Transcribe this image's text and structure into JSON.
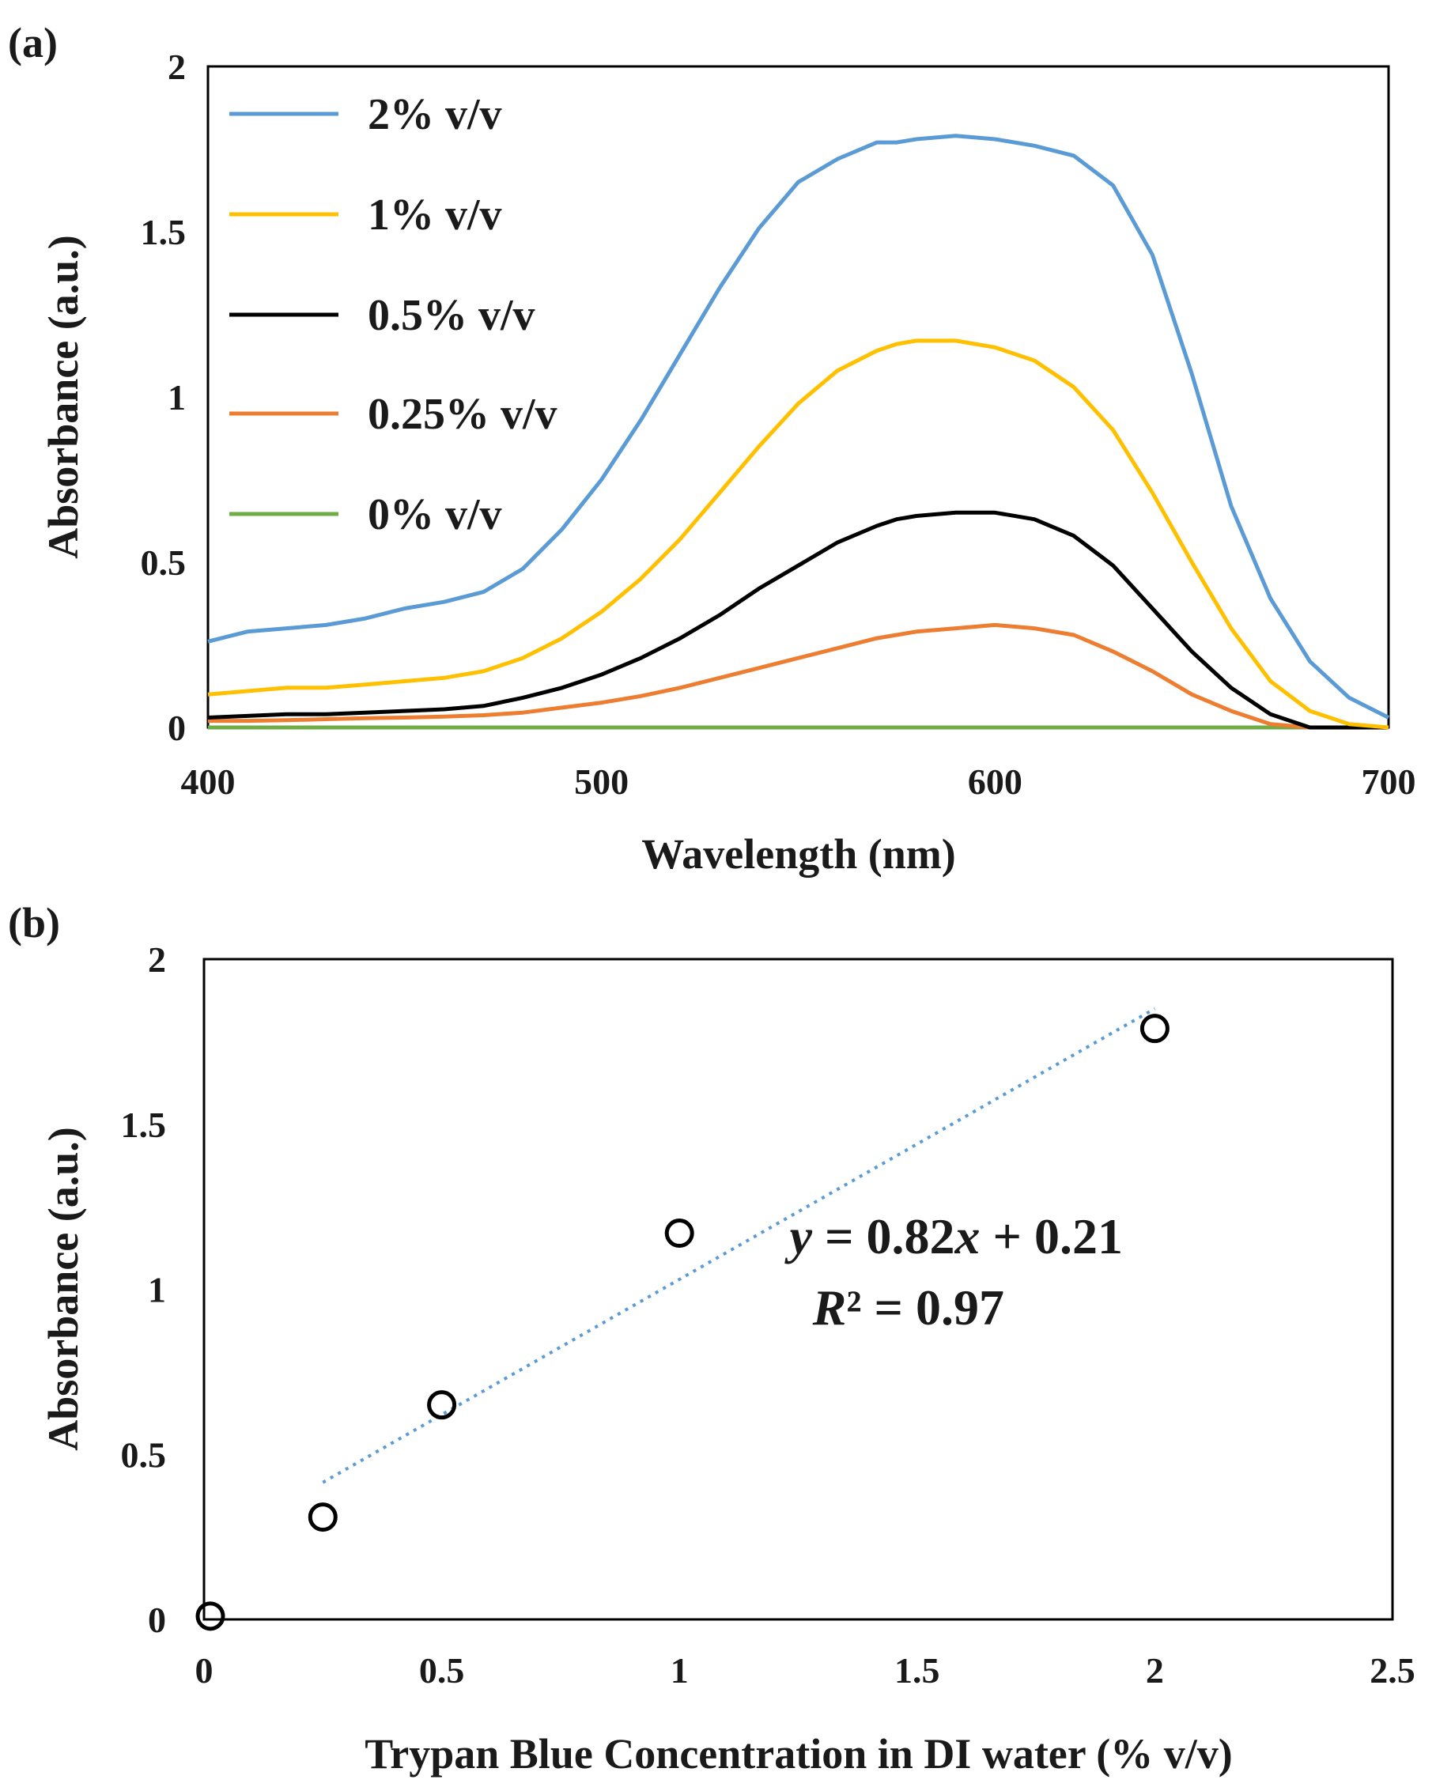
{
  "chart_data": [
    {
      "panel_label": "(a)",
      "type": "line",
      "xlabel": "Wavelength (nm)",
      "ylabel": "Absorbance (a.u.)",
      "xlim": [
        400,
        700
      ],
      "ylim": [
        0,
        2
      ],
      "xticks": [
        "400",
        "500",
        "600",
        "700"
      ],
      "yticks": [
        "0",
        "0.5",
        "1",
        "1.5",
        "2"
      ],
      "grid": false,
      "legend_position": "top-left",
      "x": [
        400,
        410,
        420,
        430,
        440,
        450,
        460,
        470,
        480,
        490,
        500,
        510,
        520,
        530,
        540,
        550,
        560,
        570,
        575,
        580,
        590,
        600,
        610,
        620,
        630,
        640,
        650,
        660,
        670,
        680,
        690,
        700
      ],
      "series": [
        {
          "name": "2% v/v",
          "color": "#5b9bd5",
          "values": [
            0.26,
            0.29,
            0.3,
            0.31,
            0.33,
            0.36,
            0.38,
            0.41,
            0.48,
            0.6,
            0.75,
            0.93,
            1.13,
            1.33,
            1.51,
            1.65,
            1.72,
            1.77,
            1.77,
            1.78,
            1.79,
            1.78,
            1.76,
            1.73,
            1.64,
            1.43,
            1.07,
            0.67,
            0.39,
            0.2,
            0.09,
            0.03
          ]
        },
        {
          "name": "1% v/v",
          "color": "#ffc000",
          "values": [
            0.1,
            0.11,
            0.12,
            0.12,
            0.13,
            0.14,
            0.15,
            0.17,
            0.21,
            0.27,
            0.35,
            0.45,
            0.57,
            0.71,
            0.85,
            0.98,
            1.08,
            1.14,
            1.16,
            1.17,
            1.17,
            1.15,
            1.11,
            1.03,
            0.9,
            0.71,
            0.5,
            0.3,
            0.14,
            0.05,
            0.01,
            0.0
          ]
        },
        {
          "name": "0.5% v/v",
          "color": "#000000",
          "values": [
            0.03,
            0.035,
            0.04,
            0.04,
            0.045,
            0.05,
            0.055,
            0.065,
            0.09,
            0.12,
            0.16,
            0.21,
            0.27,
            0.34,
            0.42,
            0.49,
            0.56,
            0.61,
            0.63,
            0.64,
            0.65,
            0.65,
            0.63,
            0.58,
            0.49,
            0.36,
            0.23,
            0.12,
            0.04,
            0.0,
            0.0,
            0.0
          ]
        },
        {
          "name": "0.25% v/v",
          "color": "#ed7d31",
          "values": [
            0.02,
            0.02,
            0.022,
            0.025,
            0.028,
            0.03,
            0.033,
            0.037,
            0.045,
            0.06,
            0.075,
            0.095,
            0.12,
            0.15,
            0.18,
            0.21,
            0.24,
            0.27,
            0.28,
            0.29,
            0.3,
            0.31,
            0.3,
            0.28,
            0.23,
            0.17,
            0.1,
            0.05,
            0.01,
            0.0,
            0.0,
            0.0
          ]
        },
        {
          "name": "0% v/v",
          "color": "#70ad47",
          "values": [
            0.0,
            0.0,
            0.0,
            0.0,
            0.0,
            0.0,
            0.0,
            0.0,
            0.0,
            0.0,
            0.0,
            0.0,
            0.0,
            0.0,
            0.0,
            0.0,
            0.0,
            0.0,
            0.0,
            0.0,
            0.0,
            0.0,
            0.0,
            0.0,
            0.0,
            0.0,
            0.0,
            0.0,
            0.0,
            0.0,
            0.0,
            0.0
          ]
        }
      ]
    },
    {
      "panel_label": "(b)",
      "type": "scatter",
      "xlabel": "Trypan Blue Concentration in DI water (% v/v)",
      "ylabel": "Absorbance (a.u.)",
      "xlim": [
        0,
        2.5
      ],
      "ylim": [
        0,
        2
      ],
      "xticks": [
        "0",
        "0.5",
        "1",
        "1.5",
        "2",
        "2.5"
      ],
      "yticks": [
        "0",
        "0.5",
        "1",
        "1.5",
        "2"
      ],
      "grid": false,
      "points": [
        {
          "x": 0,
          "y": 0.01
        },
        {
          "x": 0.25,
          "y": 0.31
        },
        {
          "x": 0.5,
          "y": 0.65
        },
        {
          "x": 1,
          "y": 1.17
        },
        {
          "x": 2,
          "y": 1.79
        }
      ],
      "trendline": {
        "slope": 0.82,
        "intercept": 0.21,
        "x_range": [
          0.25,
          2
        ],
        "color": "#5b9bd5",
        "style": "dotted"
      },
      "equation": {
        "y": "y",
        "eq_rest": " = 0.82",
        "x": "x",
        "tail": " + 0.21",
        "r": "R",
        "r_rest": "² = 0.97"
      }
    }
  ]
}
